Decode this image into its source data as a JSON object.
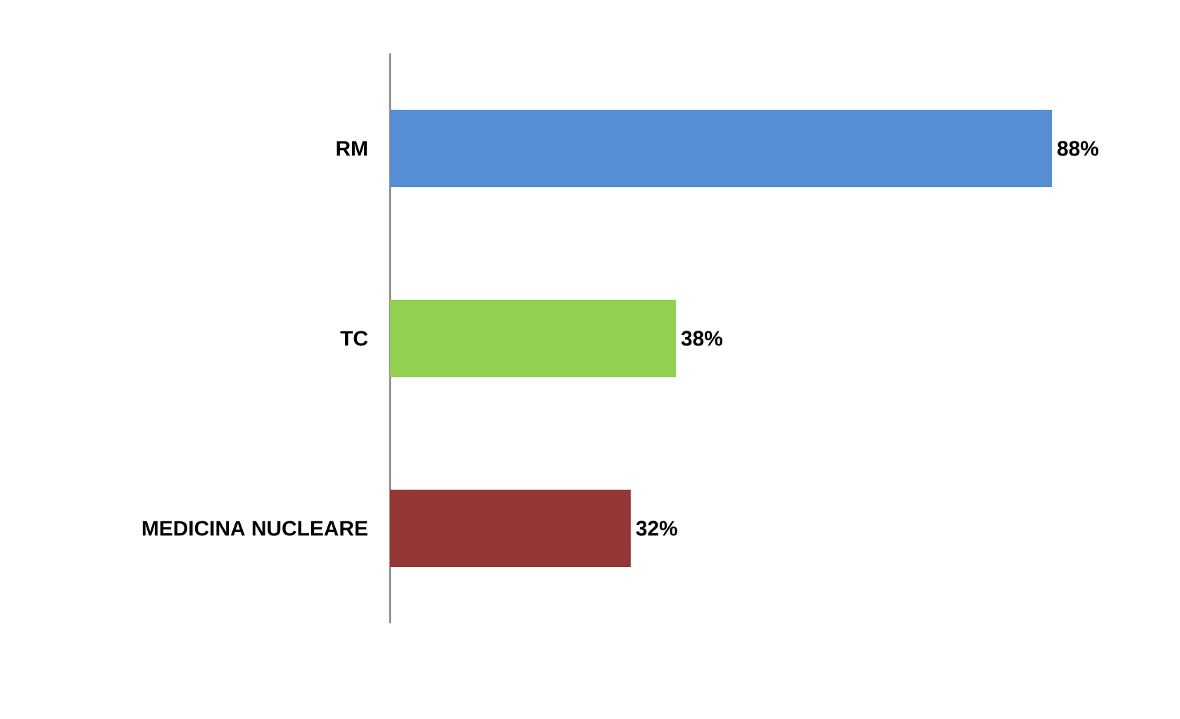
{
  "chart_data": {
    "type": "bar",
    "orientation": "horizontal",
    "categories": [
      "RM",
      "TC",
      "MEDICINA NUCLEARE"
    ],
    "values": [
      88,
      38,
      32
    ],
    "colors": [
      "#558ed5",
      "#92d050",
      "#953735"
    ],
    "value_labels": [
      "88%",
      "38%",
      "32%"
    ]
  }
}
